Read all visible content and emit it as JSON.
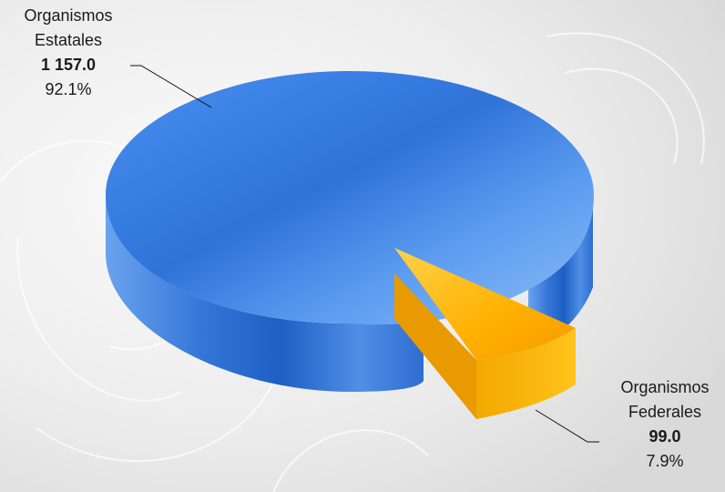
{
  "chart_data": {
    "type": "pie",
    "style": "3d-exploded",
    "slices": [
      {
        "name_line1": "Organismos",
        "name_line2": "Estatales",
        "value": 1157.0,
        "value_label": "1 157.0",
        "percent": 92.1,
        "percent_label": "92.1%",
        "color": "#3f7fe0"
      },
      {
        "name_line1": "Organismos",
        "name_line2": "Federales",
        "value": 99.0,
        "value_label": "99.0",
        "percent": 7.9,
        "percent_label": "7.9%",
        "color": "#ffb000"
      }
    ],
    "legend": "none",
    "title": ""
  }
}
